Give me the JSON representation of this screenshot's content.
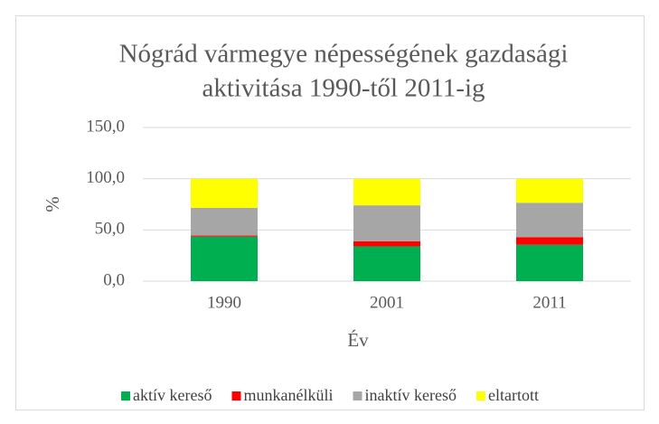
{
  "chart_data": {
    "type": "stacked_bar",
    "title": [
      "Nógrád vármegye népességének gazdasági",
      "aktivitása 1990-től 2011-ig"
    ],
    "x_label": "Év",
    "y_label": "%",
    "categories": [
      "1990",
      "2001",
      "2011"
    ],
    "series": [
      {
        "name": "aktív kereső",
        "color": "#00b050",
        "values": [
          43.5,
          34.0,
          35.5
        ]
      },
      {
        "name": "munkanélküli",
        "color": "#ff0000",
        "values": [
          1.0,
          5.0,
          7.5
        ]
      },
      {
        "name": "inaktív kereső",
        "color": "#a6a6a6",
        "values": [
          27.0,
          35.0,
          33.5
        ]
      },
      {
        "name": "eltartott",
        "color": "#ffff00",
        "values": [
          28.5,
          26.0,
          23.5
        ]
      }
    ],
    "ylim": [
      0,
      150
    ],
    "yticks": [
      {
        "value": 0,
        "label": "0,0"
      },
      {
        "value": 50,
        "label": "50,0"
      },
      {
        "value": 100,
        "label": "100,0"
      },
      {
        "value": 150,
        "label": "150,0"
      }
    ],
    "grid": true,
    "legend": "bottom"
  }
}
